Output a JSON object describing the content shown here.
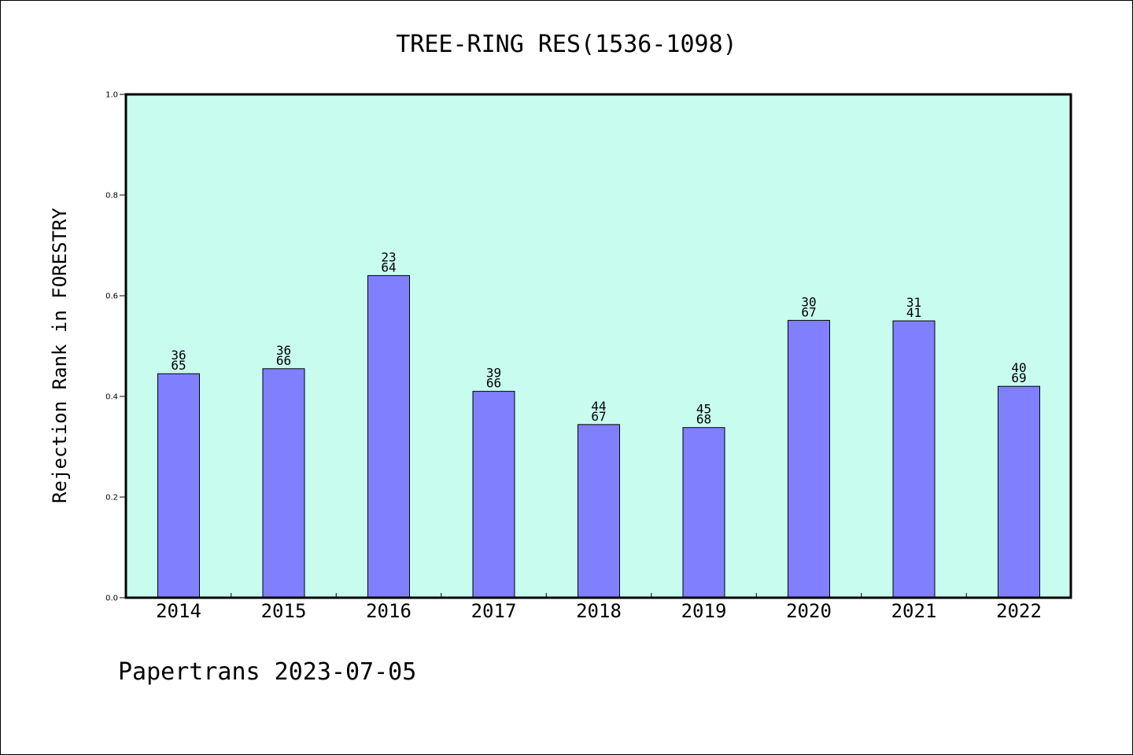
{
  "chart_data": {
    "type": "bar",
    "title": "TREE-RING RES(1536-1098)",
    "ylabel": "Rejection Rank in FORESTRY",
    "xlabel": "",
    "categories": [
      "2014",
      "2015",
      "2016",
      "2017",
      "2018",
      "2019",
      "2020",
      "2021",
      "2022"
    ],
    "values": [
      0.445,
      0.455,
      0.64,
      0.41,
      0.344,
      0.338,
      0.551,
      0.55,
      0.42
    ],
    "labels_top": [
      "36",
      "36",
      "23",
      "39",
      "44",
      "45",
      "30",
      "31",
      "40"
    ],
    "labels_bottom": [
      "65",
      "66",
      "64",
      "66",
      "67",
      "68",
      "67",
      "41",
      "69"
    ],
    "ylim": [
      0,
      1.0
    ],
    "yticks": [
      "0.0",
      "0.2",
      "0.4",
      "0.6",
      "0.8",
      "1.0"
    ],
    "grid": false,
    "colors": {
      "plot_bg": "#c8fcee",
      "bar": "#8080ff",
      "axis": "#000000"
    }
  },
  "footer": "Papertrans 2023-07-05"
}
